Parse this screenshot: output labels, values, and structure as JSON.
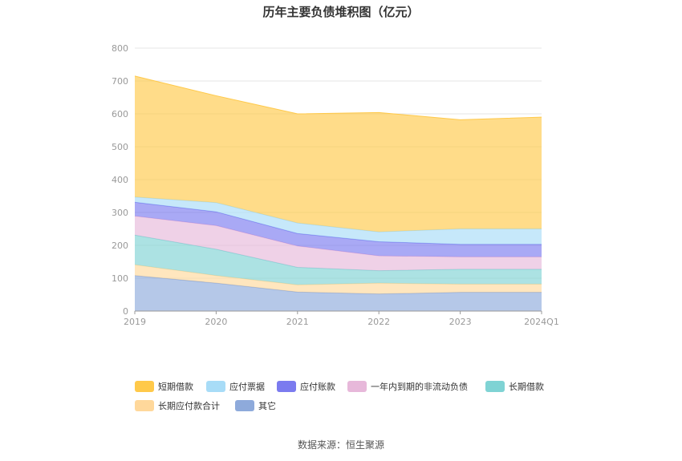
{
  "chart_data": {
    "type": "area",
    "stacked": true,
    "title": "历年主要负债堆积图（亿元）",
    "xlabel": "",
    "ylabel": "",
    "x": [
      "2019",
      "2020",
      "2021",
      "2022",
      "2023",
      "2024Q1"
    ],
    "ylim": [
      0,
      800
    ],
    "yticks": [
      0,
      100,
      200,
      300,
      400,
      500,
      600,
      700,
      800
    ],
    "grid": true,
    "legend_position": "bottom",
    "series": [
      {
        "name": "其它",
        "color": "#8eaadb",
        "values": [
          108,
          85,
          58,
          52,
          57,
          57
        ]
      },
      {
        "name": "长期应付款合计",
        "color": "#ffd89b",
        "values": [
          33,
          23,
          22,
          33,
          25,
          25
        ]
      },
      {
        "name": "长期借款",
        "color": "#7fd3d4",
        "values": [
          90,
          80,
          53,
          38,
          45,
          45
        ]
      },
      {
        "name": "一年内到期的非流动负债",
        "color": "#e7b8da",
        "values": [
          58,
          72,
          65,
          45,
          38,
          38
        ]
      },
      {
        "name": "应付账款",
        "color": "#7b7bef",
        "values": [
          42,
          42,
          38,
          43,
          38,
          38
        ]
      },
      {
        "name": "应付票据",
        "color": "#a8dcf7",
        "values": [
          16,
          28,
          32,
          30,
          47,
          47
        ]
      },
      {
        "name": "短期借款",
        "color": "#ffc94a",
        "values": [
          368,
          325,
          332,
          363,
          332,
          340
        ]
      }
    ],
    "legend_order": [
      "短期借款",
      "应付票据",
      "应付账款",
      "一年内到期的非流动负债",
      "长期借款",
      "长期应付款合计",
      "其它"
    ]
  },
  "source": "数据来源：恒生聚源"
}
